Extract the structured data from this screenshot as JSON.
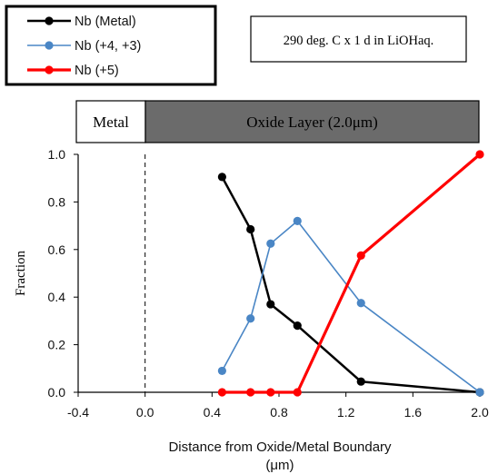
{
  "chart_data": {
    "type": "line",
    "condition_label": "290 deg. C x 1 d in LiOHaq.",
    "bar": {
      "left_label": "Metal",
      "right_label": "Oxide Layer (2.0μm)"
    },
    "xlabel_line1": "Distance from Oxide/Metal Boundary",
    "xlabel_line2": "(μm)",
    "ylabel": "Fraction",
    "xlim": [
      -0.4,
      2.0
    ],
    "ylim": [
      0.0,
      1.0
    ],
    "xticks": [
      "-0.4",
      "0.0",
      "0.4",
      "0.8",
      "1.2",
      "1.6",
      "2.0"
    ],
    "yticks": [
      "0.0",
      "0.2",
      "0.4",
      "0.6",
      "0.8",
      "1.0"
    ],
    "boundary_x": 0.0,
    "legend_position": "top-left",
    "series": [
      {
        "name": "Nb (Metal)",
        "color": "#000000",
        "x": [
          0.46,
          0.63,
          0.75,
          0.91,
          1.29,
          2.0
        ],
        "y": [
          0.905,
          0.685,
          0.37,
          0.28,
          0.045,
          0.0
        ]
      },
      {
        "name": "Nb (+4, +3)",
        "color": "#4a86c5",
        "x": [
          0.46,
          0.63,
          0.75,
          0.91,
          1.29,
          2.0
        ],
        "y": [
          0.09,
          0.31,
          0.625,
          0.72,
          0.375,
          0.0
        ]
      },
      {
        "name": "Nb (+5)",
        "color": "#ff0000",
        "x": [
          0.46,
          0.63,
          0.75,
          0.91,
          1.29,
          2.0
        ],
        "y": [
          0.0,
          0.0,
          0.0,
          0.0,
          0.575,
          1.0
        ]
      }
    ]
  }
}
